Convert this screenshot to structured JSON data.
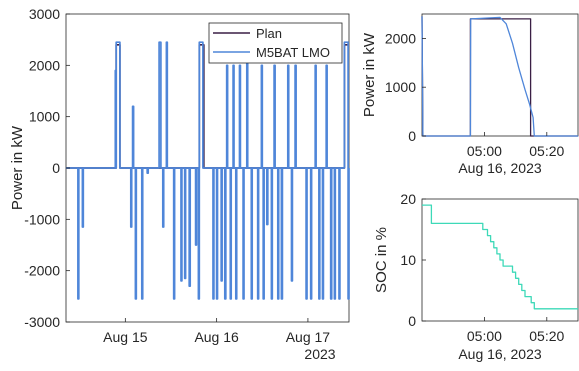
{
  "chart_data": [
    {
      "type": "line",
      "ylabel": "Power in kW",
      "xlabel": "",
      "ylim": [
        -3000,
        3000
      ],
      "yticks": [
        "3000",
        "2000",
        "1000",
        "0",
        "-1000",
        "-2000",
        "-3000"
      ],
      "yticks_values": [
        3000,
        2000,
        1000,
        0,
        -1000,
        -2000,
        -3000
      ],
      "xlim": [
        14.35,
        17.45
      ],
      "xticks": [
        "Aug 15",
        "Aug 16",
        "Aug 17"
      ],
      "xticks_values": [
        15,
        16,
        17
      ],
      "x_secondary_label": "2023",
      "legend_position": "top-right",
      "grid": false,
      "series": [
        {
          "name": "Plan",
          "color": "#3a1f45",
          "points": [
            [
              14.35,
              0
            ],
            [
              14.9,
              0
            ],
            [
              14.9,
              2400
            ],
            [
              14.94,
              2400
            ],
            [
              14.94,
              0
            ],
            [
              15.81,
              0
            ],
            [
              15.81,
              2400
            ],
            [
              15.86,
              2400
            ],
            [
              15.86,
              0
            ],
            [
              17.4,
              0
            ],
            [
              17.4,
              2400
            ],
            [
              17.45,
              2400
            ]
          ]
        },
        {
          "name": "M5BAT LMO",
          "color": "#4f86d9",
          "pulses": [
            [
              14.48,
              14.49,
              -2550
            ],
            [
              14.53,
              14.54,
              -1150
            ],
            [
              14.89,
              14.9,
              1900
            ],
            [
              14.9,
              14.94,
              2450
            ],
            [
              15.06,
              15.07,
              -1150
            ],
            [
              15.08,
              15.09,
              1200
            ],
            [
              15.11,
              15.12,
              -2550
            ],
            [
              15.18,
              15.19,
              -2550
            ],
            [
              15.24,
              15.25,
              -100
            ],
            [
              15.37,
              15.39,
              2450
            ],
            [
              15.41,
              15.42,
              -1150
            ],
            [
              15.45,
              15.46,
              2450
            ],
            [
              15.53,
              15.54,
              -2550
            ],
            [
              15.61,
              15.62,
              -2200
            ],
            [
              15.65,
              15.66,
              -2150
            ],
            [
              15.7,
              15.71,
              -2300
            ],
            [
              15.77,
              15.78,
              -1500
            ],
            [
              15.8,
              15.81,
              -2550
            ],
            [
              15.81,
              15.85,
              2450
            ],
            [
              15.96,
              15.97,
              -2550
            ],
            [
              16.0,
              16.01,
              -2550
            ],
            [
              16.05,
              16.06,
              -2200
            ],
            [
              16.09,
              16.1,
              -2550
            ],
            [
              16.11,
              16.12,
              2000
            ],
            [
              16.15,
              16.16,
              -2550
            ],
            [
              16.18,
              16.19,
              2000
            ],
            [
              16.21,
              16.22,
              -2550
            ],
            [
              16.25,
              16.26,
              2000
            ],
            [
              16.29,
              16.3,
              -2550
            ],
            [
              16.33,
              16.34,
              2400
            ],
            [
              16.38,
              16.39,
              -2550
            ],
            [
              16.45,
              16.46,
              -2550
            ],
            [
              16.49,
              16.5,
              2000
            ],
            [
              16.51,
              16.52,
              -2550
            ],
            [
              16.55,
              16.56,
              -1100
            ],
            [
              16.6,
              16.61,
              -2550
            ],
            [
              16.63,
              16.64,
              2000
            ],
            [
              16.67,
              16.68,
              -2550
            ],
            [
              16.71,
              16.72,
              -2550
            ],
            [
              16.78,
              16.79,
              2000
            ],
            [
              16.82,
              16.83,
              -2200
            ],
            [
              16.86,
              16.87,
              2000
            ],
            [
              16.98,
              16.99,
              -2550
            ],
            [
              17.03,
              17.04,
              -2550
            ],
            [
              17.08,
              17.09,
              2000
            ],
            [
              17.12,
              17.13,
              -2550
            ],
            [
              17.16,
              17.17,
              -2550
            ],
            [
              17.2,
              17.21,
              2000
            ],
            [
              17.25,
              17.26,
              -2550
            ],
            [
              17.29,
              17.3,
              -2550
            ],
            [
              17.34,
              17.35,
              -2550
            ],
            [
              17.4,
              17.44,
              2450
            ],
            [
              17.44,
              17.45,
              -2550
            ]
          ]
        }
      ]
    },
    {
      "type": "line",
      "ylabel": "Power in kW",
      "xlabel": "Aug 16, 2023",
      "ylim": [
        0,
        2500
      ],
      "yticks": [
        "2000",
        "1000",
        "0"
      ],
      "yticks_values": [
        2000,
        1000,
        0
      ],
      "xlim": [
        280,
        330
      ],
      "xticks": [
        "05:00",
        "05:20"
      ],
      "xticks_values": [
        300,
        320
      ],
      "grid": false,
      "series": [
        {
          "name": "Plan",
          "color": "#3a1f45",
          "points": [
            [
              280,
              2450
            ],
            [
              280.3,
              0
            ],
            [
              295.5,
              0
            ],
            [
              295.5,
              2400
            ],
            [
              314.8,
              2400
            ],
            [
              314.8,
              0
            ],
            [
              330,
              0
            ]
          ]
        },
        {
          "name": "M5BAT LMO",
          "color": "#4f86d9",
          "points": [
            [
              280,
              2450
            ],
            [
              280.3,
              0
            ],
            [
              295.5,
              0
            ],
            [
              295.6,
              2400
            ],
            [
              305,
              2430
            ],
            [
              307,
              2300
            ],
            [
              309,
              1900
            ],
            [
              311,
              1400
            ],
            [
              313,
              950
            ],
            [
              314.5,
              650
            ],
            [
              315.6,
              380
            ],
            [
              316,
              0
            ],
            [
              330,
              0
            ]
          ]
        }
      ]
    },
    {
      "type": "line",
      "ylabel": "SOC in %",
      "xlabel": "Aug 16, 2023",
      "ylim": [
        0,
        20
      ],
      "yticks": [
        "20",
        "10",
        "0"
      ],
      "yticks_values": [
        20,
        10,
        0
      ],
      "xlim": [
        280,
        330
      ],
      "xticks": [
        "05:00",
        "05:20"
      ],
      "xticks_values": [
        300,
        320
      ],
      "grid": false,
      "series": [
        {
          "name": "SOC",
          "color": "#3dd9b8",
          "steps": [
            [
              280,
              19
            ],
            [
              283,
              16
            ],
            [
              299.5,
              15
            ],
            [
              301,
              14
            ],
            [
              302,
              13
            ],
            [
              303,
              12
            ],
            [
              304,
              11
            ],
            [
              305,
              10
            ],
            [
              306,
              9
            ],
            [
              309,
              8
            ],
            [
              310,
              7
            ],
            [
              311,
              6
            ],
            [
              312,
              5
            ],
            [
              313,
              4
            ],
            [
              315,
              3
            ],
            [
              316,
              2
            ],
            [
              330,
              2
            ]
          ]
        }
      ]
    }
  ]
}
